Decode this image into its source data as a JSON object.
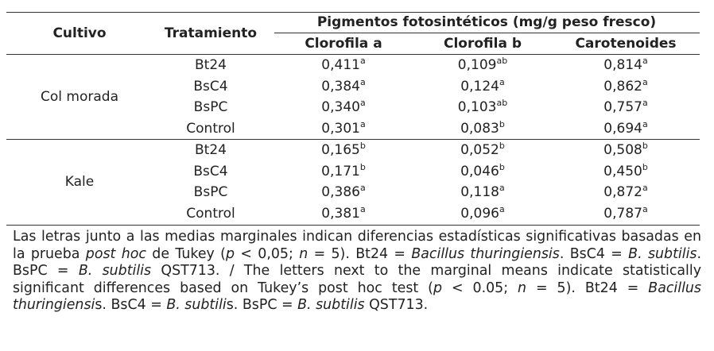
{
  "table": {
    "header": {
      "cultivo": "Cultivo",
      "tratamiento": "Tratamiento",
      "group": "Pigmentos fotosintéticos (mg/g peso fresco)",
      "columns": [
        "Clorofila a",
        "Clorofila b",
        "Carotenoides"
      ]
    },
    "groups": [
      {
        "cultivo": "Col morada",
        "rows": [
          {
            "tratamiento": "Bt24",
            "cells": [
              {
                "value": "0,411",
                "sup": "a"
              },
              {
                "value": "0,109",
                "sup": "ab"
              },
              {
                "value": "0,814",
                "sup": "a"
              }
            ]
          },
          {
            "tratamiento": "BsC4",
            "cells": [
              {
                "value": "0,384",
                "sup": "a"
              },
              {
                "value": "0,124",
                "sup": "a"
              },
              {
                "value": "0,862",
                "sup": "a"
              }
            ]
          },
          {
            "tratamiento": "BsPC",
            "cells": [
              {
                "value": "0,340",
                "sup": "a"
              },
              {
                "value": "0,103",
                "sup": "ab"
              },
              {
                "value": "0,757",
                "sup": "a"
              }
            ]
          },
          {
            "tratamiento": "Control",
            "cells": [
              {
                "value": "0,301",
                "sup": "a"
              },
              {
                "value": "0,083",
                "sup": "b"
              },
              {
                "value": "0,694",
                "sup": "a"
              }
            ]
          }
        ]
      },
      {
        "cultivo": "Kale",
        "rows": [
          {
            "tratamiento": "Bt24",
            "cells": [
              {
                "value": "0,165",
                "sup": "b"
              },
              {
                "value": "0,052",
                "sup": "b"
              },
              {
                "value": "0,508",
                "sup": "b"
              }
            ]
          },
          {
            "tratamiento": "BsC4",
            "cells": [
              {
                "value": "0,171",
                "sup": "b"
              },
              {
                "value": "0,046",
                "sup": "b"
              },
              {
                "value": "0,450",
                "sup": "b"
              }
            ]
          },
          {
            "tratamiento": "BsPC",
            "cells": [
              {
                "value": "0,386",
                "sup": "a"
              },
              {
                "value": "0,118",
                "sup": "a"
              },
              {
                "value": "0,872",
                "sup": "a"
              }
            ]
          },
          {
            "tratamiento": "Control",
            "cells": [
              {
                "value": "0,381",
                "sup": "a"
              },
              {
                "value": "0,096",
                "sup": "a"
              },
              {
                "value": "0,787",
                "sup": "a"
              }
            ]
          }
        ]
      }
    ]
  },
  "footnote": [
    {
      "text": "Las letras junto a las medias marginales indican diferencias estadísticas significativas basadas en la prueba ",
      "italic": false
    },
    {
      "text": "post hoc",
      "italic": true
    },
    {
      "text": " de Tukey (",
      "italic": false
    },
    {
      "text": "p",
      "italic": true
    },
    {
      "text": " < 0,05; ",
      "italic": false
    },
    {
      "text": "n",
      "italic": true
    },
    {
      "text": " = 5). Bt24 = ",
      "italic": false
    },
    {
      "text": "Bacillus thuringiensis",
      "italic": true
    },
    {
      "text": ". BsC4 = ",
      "italic": false
    },
    {
      "text": "B. subtilis",
      "italic": true
    },
    {
      "text": ". BsPC = ",
      "italic": false
    },
    {
      "text": "B. subtilis",
      "italic": true
    },
    {
      "text": " QST713. / The letters next to the marginal means indicate statistically significant differences based on Tukey’s post hoc test (",
      "italic": false
    },
    {
      "text": "p",
      "italic": true
    },
    {
      "text": " < 0.05; ",
      "italic": false
    },
    {
      "text": "n",
      "italic": true
    },
    {
      "text": " = 5). Bt24 = ",
      "italic": false
    },
    {
      "text": "Bacillus thuringiensi",
      "italic": true
    },
    {
      "text": "s. BsC4 = ",
      "italic": false
    },
    {
      "text": "B. subtili",
      "italic": true
    },
    {
      "text": "s. BsPC = ",
      "italic": false
    },
    {
      "text": "B. subtilis",
      "italic": true
    },
    {
      "text": " QST713.",
      "italic": false
    }
  ]
}
